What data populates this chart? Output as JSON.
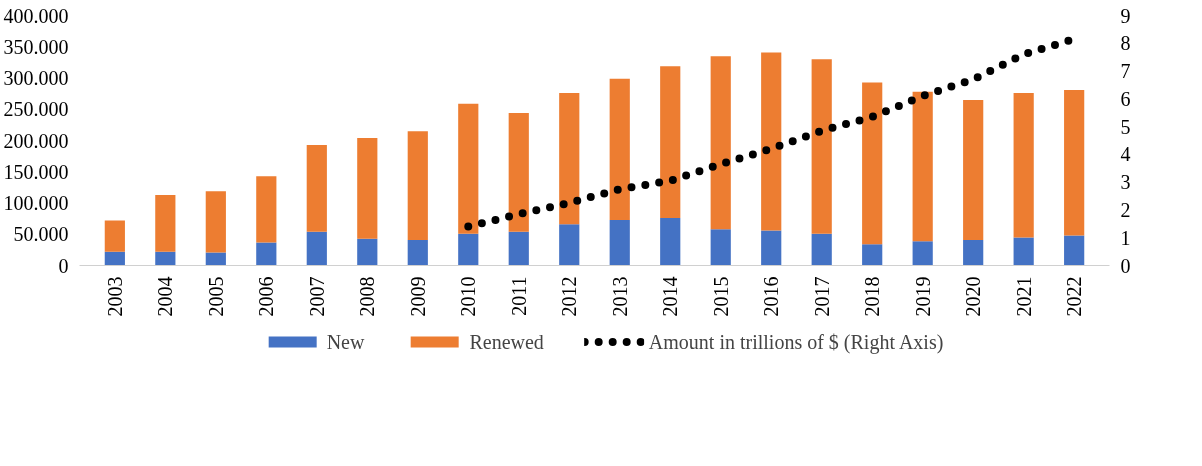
{
  "chart_data": {
    "type": "bar",
    "stacked": true,
    "categories": [
      "2003",
      "2004",
      "2005",
      "2006",
      "2007",
      "2008",
      "2009",
      "2010",
      "2011",
      "2012",
      "2013",
      "2014",
      "2015",
      "2016",
      "2017",
      "2018",
      "2019",
      "2020",
      "2021",
      "2022"
    ],
    "series": [
      {
        "name": "New",
        "color": "#4472c4",
        "values": [
          22000,
          22000,
          21000,
          37000,
          54000,
          43000,
          41000,
          51000,
          54000,
          66000,
          73000,
          76000,
          58000,
          56000,
          51000,
          34000,
          39000,
          41000,
          45000,
          48000
        ]
      },
      {
        "name": "Renewed",
        "color": "#ed7d31",
        "values": [
          50000,
          91000,
          98000,
          106000,
          139000,
          161000,
          174000,
          208000,
          190000,
          210000,
          226000,
          243000,
          277000,
          285000,
          279000,
          259000,
          239000,
          224000,
          231000,
          233000
        ]
      },
      {
        "name": "Amount in trillions of $ (Right Axis)",
        "type": "line",
        "axis": "y2",
        "color": "#000000",
        "line_style": "dotted",
        "values": [
          null,
          null,
          null,
          null,
          null,
          null,
          null,
          1.4,
          1.85,
          2.25,
          2.75,
          3.05,
          3.65,
          4.2,
          4.85,
          5.35,
          6.1,
          6.7,
          7.6,
          8.15
        ]
      }
    ],
    "ylim": [
      0,
      400000
    ],
    "yticks": [
      {
        "value": 0,
        "label": "0"
      },
      {
        "value": 50000,
        "label": "50.000"
      },
      {
        "value": 100000,
        "label": "100.000"
      },
      {
        "value": 150000,
        "label": "150.000"
      },
      {
        "value": 200000,
        "label": "200.000"
      },
      {
        "value": 250000,
        "label": "250.000"
      },
      {
        "value": 300000,
        "label": "300.000"
      },
      {
        "value": 350000,
        "label": "350.000"
      },
      {
        "value": 400000,
        "label": "400.000"
      }
    ],
    "y2lim": [
      0,
      9
    ],
    "y2ticks": [
      0,
      1,
      2,
      3,
      4,
      5,
      6,
      7,
      8,
      9
    ],
    "grid": false,
    "legend": "bottom"
  }
}
